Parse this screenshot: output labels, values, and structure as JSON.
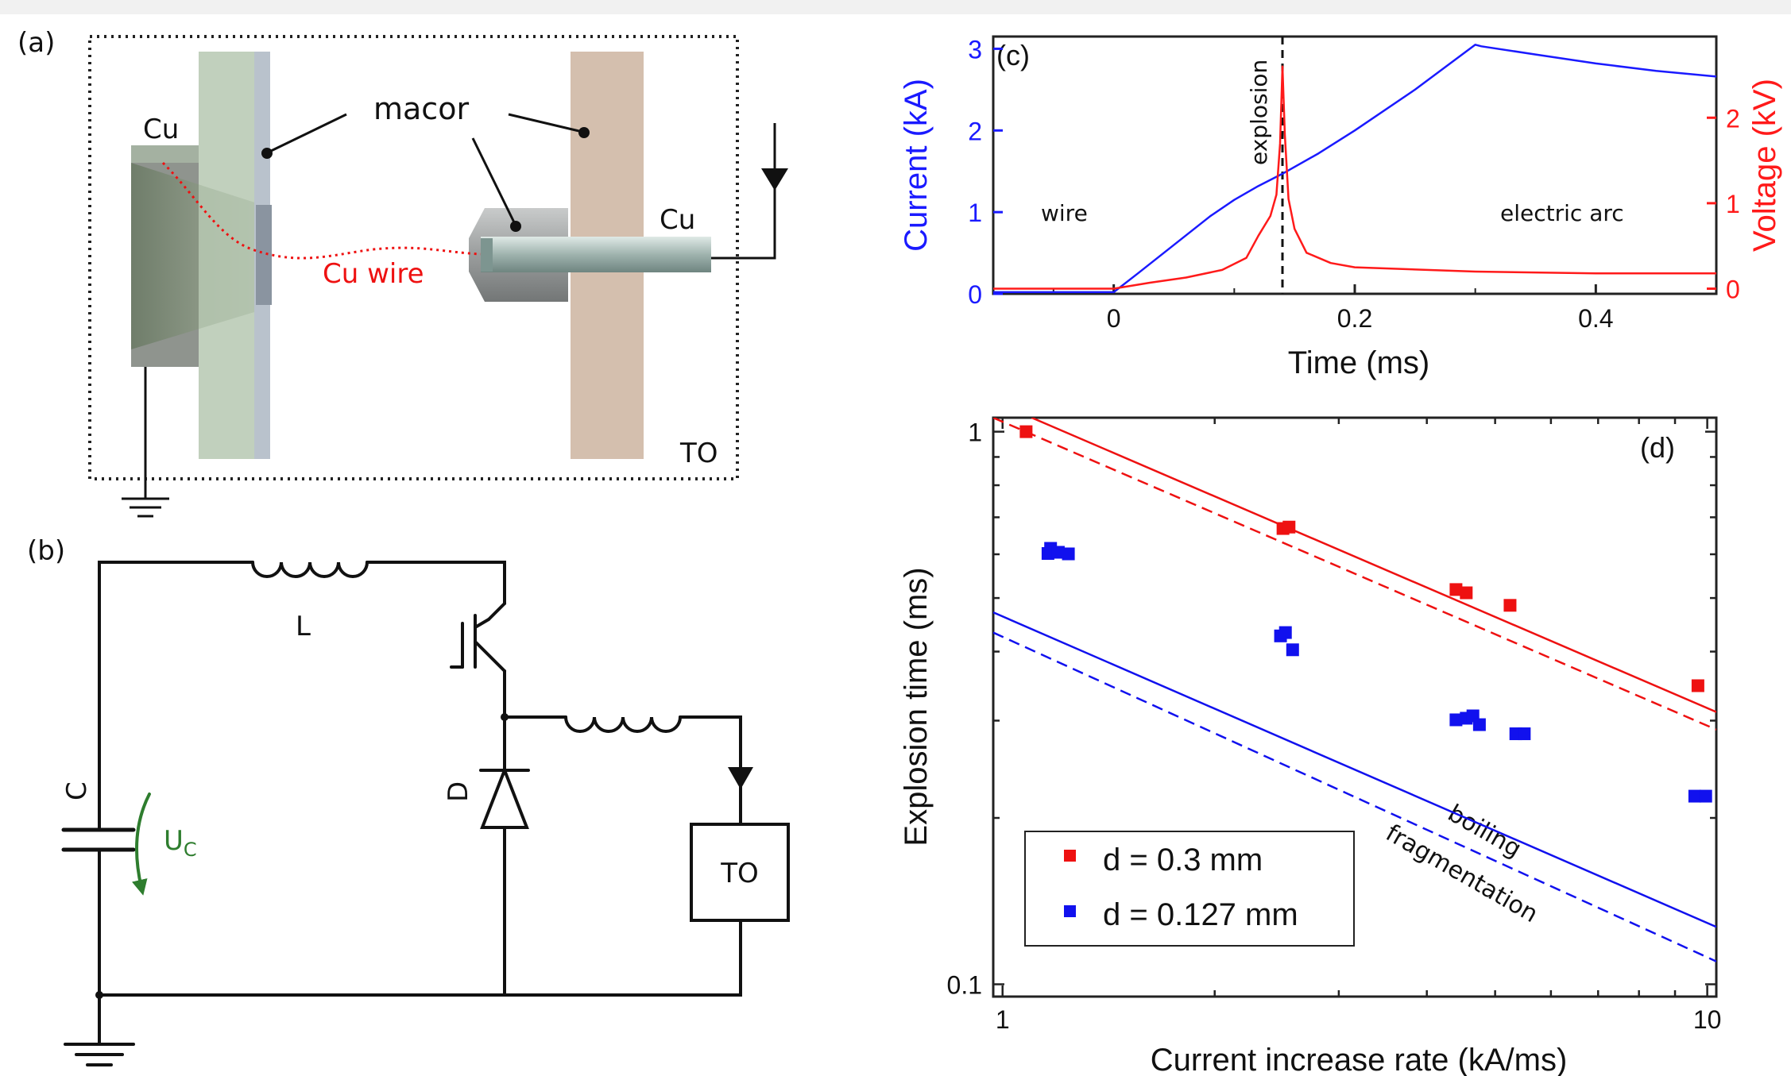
{
  "panel_a": {
    "label": "(a)",
    "cu_left": "Cu",
    "cu_right": "Cu",
    "macor": "macor",
    "wire": "Cu wire",
    "to": "TO"
  },
  "panel_b": {
    "label": "(b)",
    "inductor": "L",
    "capacitor": "C",
    "voltage": "U",
    "voltage_sub": "C",
    "diode": "D",
    "load": "TO"
  },
  "chart_data": [
    {
      "panel": "(c)",
      "type": "line",
      "xlabel": "Time (ms)",
      "ylabel_left": "Current (kA)",
      "ylabel_right": "Voltage (kV)",
      "xlim": [
        -0.1,
        0.5
      ],
      "ylim_left": [
        0,
        3.15
      ],
      "ylim_right": [
        -0.06,
        2.95
      ],
      "x_ticks": [
        "0",
        "0.2",
        "0.4"
      ],
      "y_ticks_left": [
        "0",
        "1",
        "2",
        "3"
      ],
      "y_ticks_right": [
        "0",
        "1",
        "2"
      ],
      "annotations": {
        "left": "wire",
        "middle": "explosion",
        "right": "electric arc"
      },
      "explosion_time": 0.14,
      "colors": {
        "current": "#1a1aff",
        "voltage": "#ff1a1a"
      },
      "series": [
        {
          "axis": "left",
          "color": "#1a1aff",
          "x": [
            -0.1,
            0.0,
            0.02,
            0.05,
            0.08,
            0.1,
            0.12,
            0.14,
            0.17,
            0.2,
            0.25,
            0.3,
            0.305,
            0.35,
            0.4,
            0.45,
            0.5
          ],
          "y": [
            0.02,
            0.02,
            0.25,
            0.6,
            0.95,
            1.15,
            1.32,
            1.47,
            1.72,
            2.0,
            2.5,
            3.05,
            3.03,
            2.93,
            2.82,
            2.73,
            2.66
          ]
        },
        {
          "axis": "right",
          "color": "#ff1a1a",
          "x": [
            -0.1,
            0.0,
            0.03,
            0.06,
            0.09,
            0.11,
            0.12,
            0.13,
            0.135,
            0.138,
            0.14,
            0.142,
            0.145,
            0.15,
            0.16,
            0.18,
            0.2,
            0.3,
            0.4,
            0.5
          ],
          "y": [
            0.0,
            0.0,
            0.07,
            0.13,
            0.22,
            0.36,
            0.62,
            0.85,
            1.1,
            1.7,
            2.6,
            1.8,
            1.05,
            0.7,
            0.42,
            0.3,
            0.25,
            0.2,
            0.18,
            0.18
          ]
        }
      ]
    },
    {
      "panel": "(d)",
      "type": "scatter",
      "xlabel": "Current increase rate (kA/ms)",
      "ylabel": "Explosion time (ms)",
      "x_scale": "log",
      "y_scale": "log",
      "xlim": [
        0.97,
        10.3
      ],
      "ylim": [
        0.095,
        1.06
      ],
      "x_ticks": [
        "1",
        "10"
      ],
      "y_ticks": [
        "0.1",
        "1"
      ],
      "curve_labels": {
        "solid": "boiling",
        "dashed": "fragmentation"
      },
      "series": [
        {
          "name": "d = 0.3 mm",
          "color": "#ee1111",
          "x": [
            1.08,
            2.5,
            2.55,
            4.4,
            4.55,
            5.25,
            9.7
          ],
          "y": [
            1.0,
            0.668,
            0.672,
            0.518,
            0.511,
            0.485,
            0.347
          ]
        },
        {
          "name": "d = 0.127 mm",
          "color": "#1111ee",
          "x": [
            1.16,
            1.17,
            1.2,
            1.24,
            2.48,
            2.52,
            2.58,
            4.4,
            4.55,
            4.65,
            4.75,
            5.35,
            5.5,
            9.6,
            9.95
          ],
          "y": [
            0.602,
            0.615,
            0.605,
            0.601,
            0.427,
            0.433,
            0.403,
            0.301,
            0.303,
            0.306,
            0.295,
            0.284,
            0.284,
            0.219,
            0.219
          ]
        }
      ],
      "lines": [
        {
          "color": "#ee1111",
          "style": "solid",
          "x": [
            1.1,
            10.3
          ],
          "y": [
            1.06,
            0.311
          ]
        },
        {
          "color": "#ee1111",
          "style": "dashed",
          "x": [
            0.97,
            10.3
          ],
          "y": [
            1.06,
            0.289
          ]
        },
        {
          "color": "#1111ee",
          "style": "solid",
          "x": [
            0.97,
            10.3
          ],
          "y": [
            0.471,
            0.127
          ]
        },
        {
          "color": "#1111ee",
          "style": "dashed",
          "x": [
            0.97,
            10.3
          ],
          "y": [
            0.433,
            0.11
          ]
        }
      ]
    }
  ]
}
